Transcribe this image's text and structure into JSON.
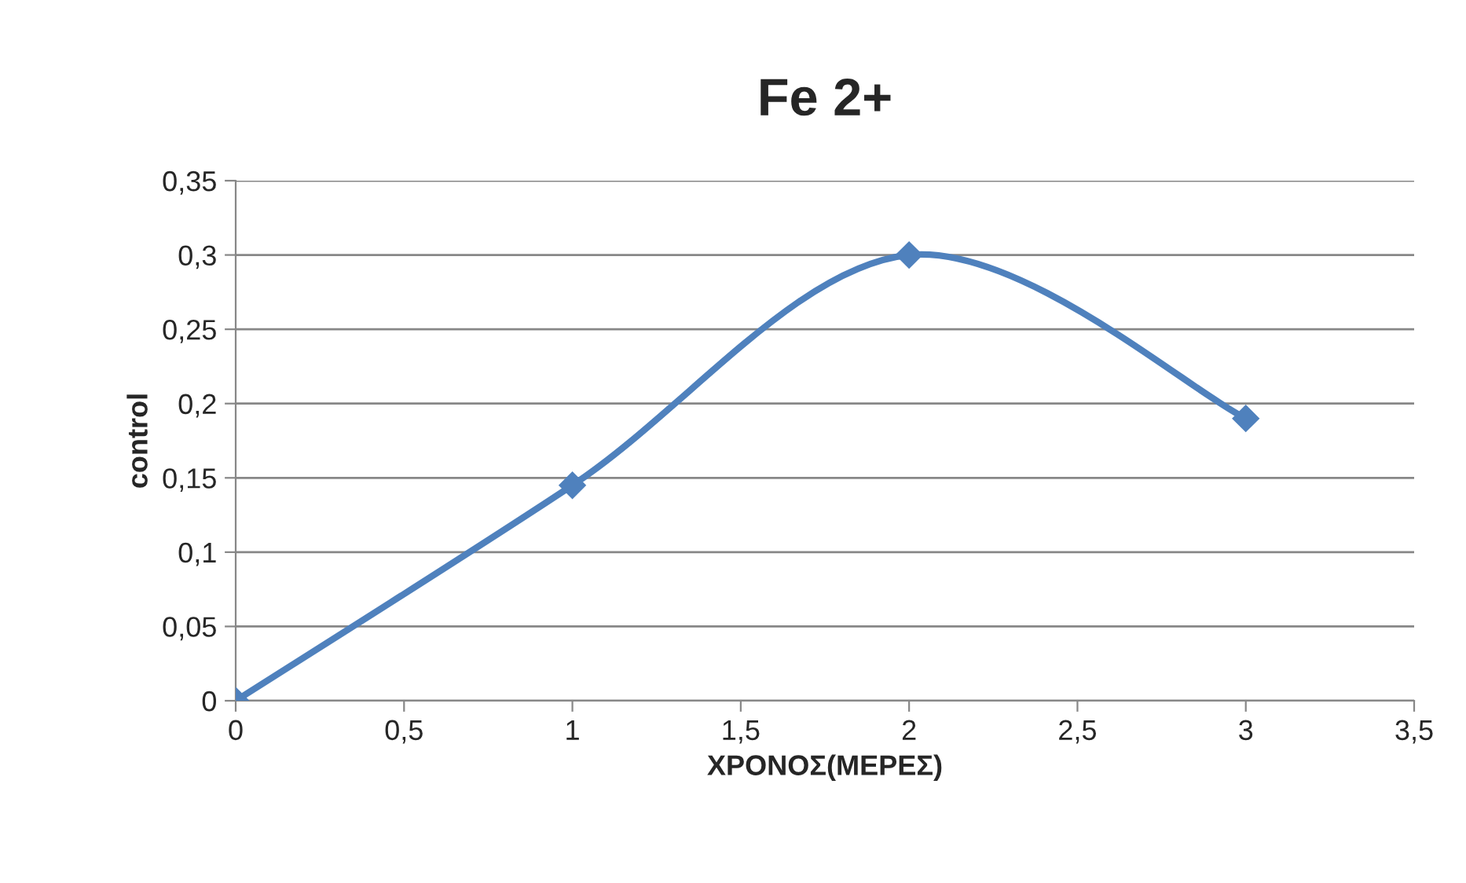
{
  "chart_data": {
    "type": "line",
    "title": "Fe 2+",
    "xlabel": "ΧΡΟΝΟΣ(ΜΕΡΕΣ)",
    "ylabel": "control",
    "x": [
      0,
      1,
      2,
      3
    ],
    "series": [
      {
        "color": "#4f81bd",
        "values": [
          0,
          0.145,
          0.3,
          0.19
        ]
      }
    ],
    "xlim": [
      0,
      3.5
    ],
    "xticks": [
      0,
      {
        "value": 0.5,
        "label": "0,5"
      },
      1,
      {
        "value": 1.5,
        "label": "1,5"
      },
      2,
      {
        "value": 2.5,
        "label": "2,5"
      },
      3,
      {
        "value": 3.5,
        "label": "3,5"
      }
    ],
    "ylim": [
      0,
      0.35
    ],
    "yticks": [
      0,
      {
        "value": 0.05,
        "label": "0,05"
      },
      {
        "value": 0.1,
        "label": "0,1"
      },
      {
        "value": 0.15,
        "label": "0,15"
      },
      {
        "value": 0.2,
        "label": "0,2"
      },
      {
        "value": 0.25,
        "label": "0,25"
      },
      {
        "value": 0.3,
        "label": "0,3"
      },
      {
        "value": 0.35,
        "label": "0,35"
      }
    ],
    "grid": "y",
    "marker": "diamond",
    "line_style": "solid",
    "legend": false
  }
}
